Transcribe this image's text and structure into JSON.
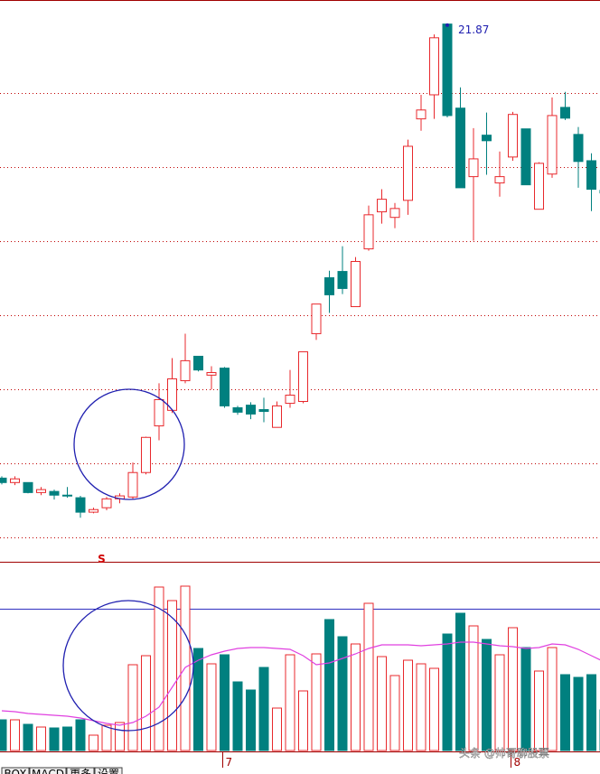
{
  "chart_data": [
    {
      "type": "candlestick",
      "categories": [
        null,
        null,
        null,
        null,
        null,
        null,
        null,
        null,
        null,
        null,
        null,
        null,
        null,
        null,
        null,
        null,
        null,
        "7",
        null,
        null,
        null,
        null,
        null,
        null,
        null,
        null,
        null,
        null,
        null,
        null,
        null,
        null,
        null,
        null,
        null,
        null,
        null,
        null,
        null,
        "8",
        null,
        null,
        null,
        null,
        null,
        null,
        null
      ],
      "open": [
        9.59,
        9.47,
        9.47,
        9.2,
        9.23,
        9.13,
        9.06,
        8.67,
        8.79,
        9.03,
        9.08,
        9.74,
        11.0,
        11.42,
        12.22,
        12.88,
        12.37,
        12.56,
        11.49,
        11.56,
        11.44,
        10.96,
        11.61,
        11.66,
        13.49,
        15.0,
        15.17,
        14.22,
        15.78,
        16.78,
        16.63,
        17.09,
        19.29,
        19.94,
        21.85,
        19.58,
        17.73,
        18.85,
        17.56,
        18.26,
        19.02,
        16.85,
        17.8,
        19.6,
        18.87,
        18.16,
        17.36
      ],
      "high": [
        9.64,
        9.64,
        9.47,
        9.35,
        9.28,
        9.35,
        9.11,
        8.79,
        9.08,
        9.18,
        10.01,
        10.71,
        12.15,
        12.83,
        13.49,
        12.88,
        12.61,
        12.59,
        11.54,
        11.64,
        11.76,
        11.66,
        12.51,
        13.0,
        14.29,
        15.19,
        15.85,
        15.56,
        16.95,
        17.39,
        17.02,
        18.73,
        19.94,
        21.57,
        21.87,
        20.14,
        19.04,
        19.46,
        18.41,
        19.48,
        19.02,
        18.12,
        19.87,
        20.02,
        19.07,
        18.36,
        17.43
      ],
      "low": [
        9.42,
        9.4,
        9.18,
        9.13,
        9.01,
        9.06,
        8.52,
        8.64,
        8.72,
        8.91,
        9.03,
        9.69,
        10.61,
        11.35,
        12.15,
        12.47,
        11.98,
        11.49,
        11.3,
        11.18,
        11.1,
        10.96,
        11.49,
        11.61,
        13.32,
        14.05,
        14.56,
        14.22,
        15.73,
        16.46,
        16.34,
        16.7,
        18.97,
        19.29,
        19.33,
        17.43,
        16.0,
        17.78,
        17.19,
        18.16,
        17.51,
        16.85,
        17.7,
        19.26,
        17.43,
        16.8,
        17.24
      ],
      "close": [
        9.47,
        9.57,
        9.2,
        9.28,
        9.13,
        9.11,
        8.67,
        8.74,
        9.03,
        9.11,
        9.74,
        10.69,
        11.71,
        12.27,
        12.76,
        12.51,
        12.44,
        11.54,
        11.37,
        11.32,
        11.39,
        11.54,
        11.83,
        13.0,
        14.29,
        14.54,
        14.71,
        15.44,
        16.7,
        17.12,
        16.87,
        18.55,
        19.53,
        21.48,
        19.38,
        17.43,
        18.21,
        18.7,
        17.73,
        19.41,
        17.51,
        18.09,
        19.38,
        19.31,
        18.14,
        17.39,
        17.29
      ],
      "up_color": "#e8282c",
      "down_color": "#00807f",
      "ylim": [
        7.38,
        22.5
      ],
      "yticks": [
        8,
        10,
        12,
        14,
        16,
        18,
        20
      ],
      "grid": true,
      "annotations": [
        "S"
      ]
    },
    {
      "type": "bar",
      "values": [
        34,
        34,
        29,
        26,
        25,
        26,
        34,
        17,
        28,
        31,
        95,
        105,
        181,
        166,
        182,
        113,
        96,
        106,
        76,
        67,
        92,
        47,
        106,
        66,
        107,
        145,
        126,
        118,
        163,
        104,
        83,
        100,
        96,
        91,
        129,
        152,
        138,
        123,
        106,
        136,
        114,
        88,
        114,
        84,
        81,
        84,
        45
      ],
      "line_values": [
        44,
        43,
        41,
        40,
        39,
        38,
        36,
        33,
        30,
        28,
        31,
        38,
        48,
        70,
        92,
        100,
        106,
        110,
        113,
        114,
        114,
        113,
        112,
        105,
        95,
        97,
        102,
        107,
        113,
        117,
        117,
        117,
        116,
        117,
        118,
        120,
        120,
        118,
        116,
        115,
        113,
        114,
        118,
        117,
        112,
        105,
        98
      ],
      "line_color": "#e040e0",
      "ylim": [
        0,
        200
      ]
    }
  ],
  "tabs": [
    "BOX",
    "MACD",
    "更多",
    "设置"
  ],
  "watermark": "头条 @帅哥聊股票"
}
